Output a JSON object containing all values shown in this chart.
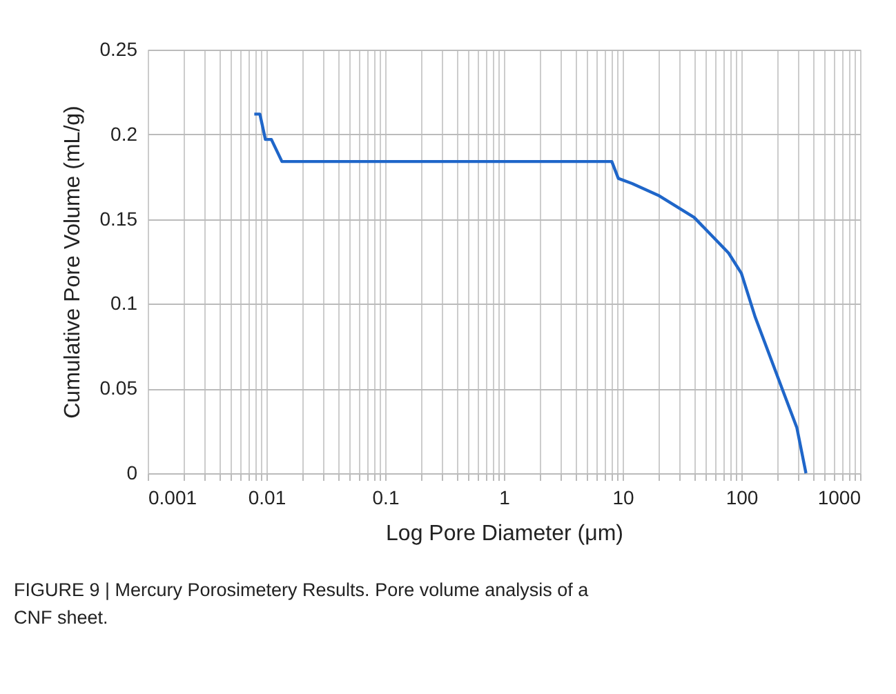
{
  "chart_data": {
    "type": "line",
    "xlabel": "Log Pore Diameter (μm)",
    "ylabel": "Cumulative Pore Volume (mL/g)",
    "series": [
      {
        "color": "#1f66c9",
        "x": [
          0.0079,
          0.0088,
          0.0098,
          0.011,
          0.0135,
          1,
          8.1,
          9.2,
          12,
          20,
          40,
          78,
          100,
          131,
          223,
          293,
          350
        ],
        "values": [
          0.212,
          0.212,
          0.197,
          0.197,
          0.184,
          0.184,
          0.184,
          0.174,
          0.171,
          0.164,
          0.151,
          0.13,
          0.118,
          0.092,
          0.049,
          0.027,
          0
        ]
      }
    ],
    "log": "x",
    "xlim": [
      0.001,
      1000
    ],
    "ylim": [
      0,
      0.25
    ],
    "xticks": [
      0.001,
      {
        "value": 0.002,
        "label": null
      },
      {
        "value": 0.003,
        "label": null
      },
      {
        "value": 0.004,
        "label": null
      },
      {
        "value": 0.005,
        "label": null
      },
      {
        "value": 0.006,
        "label": null
      },
      {
        "value": 0.007,
        "label": null
      },
      {
        "value": 0.008,
        "label": null
      },
      {
        "value": 0.009,
        "label": null
      },
      0.01,
      {
        "value": 0.02,
        "label": null
      },
      {
        "value": 0.03,
        "label": null
      },
      {
        "value": 0.04,
        "label": null
      },
      {
        "value": 0.05,
        "label": null
      },
      {
        "value": 0.06,
        "label": null
      },
      {
        "value": 0.07,
        "label": null
      },
      {
        "value": 0.08,
        "label": null
      },
      {
        "value": 0.09,
        "label": null
      },
      0.1,
      {
        "value": 0.2,
        "label": null
      },
      {
        "value": 0.3,
        "label": null
      },
      {
        "value": 0.4,
        "label": null
      },
      {
        "value": 0.5,
        "label": null
      },
      {
        "value": 0.6,
        "label": null
      },
      {
        "value": 0.7,
        "label": null
      },
      {
        "value": 0.8,
        "label": null
      },
      {
        "value": 0.9,
        "label": null
      },
      1,
      {
        "value": 2,
        "label": null
      },
      {
        "value": 3,
        "label": null
      },
      {
        "value": 4,
        "label": null
      },
      {
        "value": 5,
        "label": null
      },
      {
        "value": 6,
        "label": null
      },
      {
        "value": 7,
        "label": null
      },
      {
        "value": 8,
        "label": null
      },
      {
        "value": 9,
        "label": null
      },
      10,
      {
        "value": 20,
        "label": null
      },
      {
        "value": 30,
        "label": null
      },
      {
        "value": 40,
        "label": null
      },
      {
        "value": 50,
        "label": null
      },
      {
        "value": 60,
        "label": null
      },
      {
        "value": 70,
        "label": null
      },
      {
        "value": 80,
        "label": null
      },
      {
        "value": 90,
        "label": null
      },
      100,
      {
        "value": 200,
        "label": null
      },
      {
        "value": 300,
        "label": null
      },
      {
        "value": 400,
        "label": null
      },
      {
        "value": 500,
        "label": null
      },
      {
        "value": 600,
        "label": null
      },
      {
        "value": 700,
        "label": null
      },
      {
        "value": 800,
        "label": null
      },
      {
        "value": 900,
        "label": null
      },
      1000
    ],
    "yticks": [
      0,
      0.05,
      0.1,
      0.15,
      0.2,
      0.25
    ],
    "grid": true,
    "marker": "none",
    "line_style": "solid",
    "annotations": [
      "FIGURE 9 | Mercury Porosimetery Results. Pore volume analysis of a CNF sheet."
    ]
  }
}
